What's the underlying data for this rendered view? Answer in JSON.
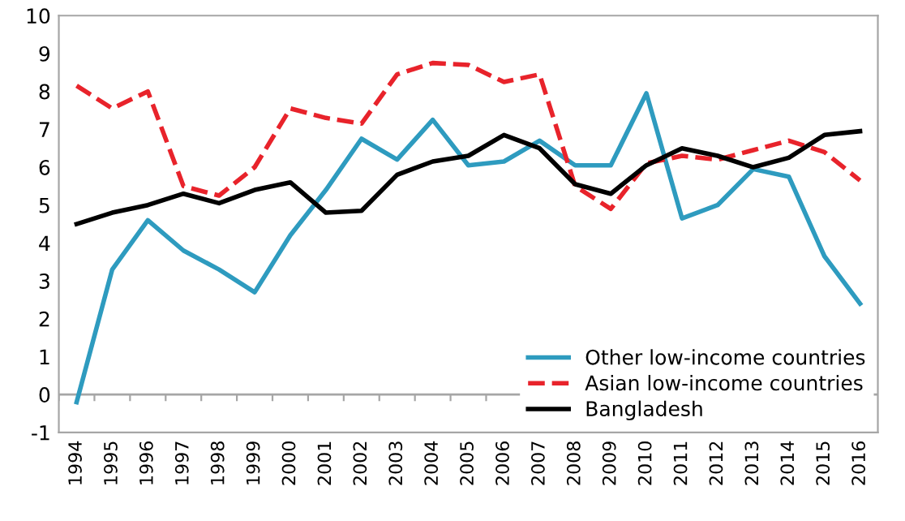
{
  "chart_data": {
    "type": "line",
    "categories": [
      "1994",
      "1995",
      "1996",
      "1997",
      "1998",
      "1999",
      "2000",
      "2001",
      "2002",
      "2003",
      "2004",
      "2005",
      "2006",
      "2007",
      "2008",
      "2009",
      "2010",
      "2011",
      "2012",
      "2013",
      "2014",
      "2015",
      "2016"
    ],
    "series": [
      {
        "name": "Other low-income countries",
        "color": "#2e9bbf",
        "line_style": "solid",
        "values": [
          -0.2,
          3.3,
          4.6,
          3.8,
          3.3,
          2.7,
          4.2,
          5.4,
          6.75,
          6.2,
          7.25,
          6.05,
          6.15,
          6.7,
          6.05,
          6.05,
          7.95,
          4.65,
          5.0,
          5.95,
          5.75,
          3.65,
          2.4
        ]
      },
      {
        "name": "Asian low-income countries",
        "color": "#e8232b",
        "line_style": "dashed",
        "values": [
          8.15,
          7.55,
          8.0,
          5.5,
          5.25,
          6.0,
          7.55,
          7.3,
          7.15,
          8.45,
          8.75,
          8.7,
          8.25,
          8.45,
          5.5,
          4.9,
          6.1,
          6.3,
          6.2,
          6.45,
          6.7,
          6.4,
          5.65
        ]
      },
      {
        "name": "Bangladesh",
        "color": "#000000",
        "line_style": "solid",
        "values": [
          4.5,
          4.8,
          5.0,
          5.3,
          5.05,
          5.4,
          5.6,
          4.8,
          4.85,
          5.8,
          6.15,
          6.3,
          6.85,
          6.5,
          5.55,
          5.3,
          6.05,
          6.5,
          6.3,
          6.0,
          6.25,
          6.85,
          6.95
        ]
      }
    ],
    "ylim": [
      -1,
      10
    ],
    "yticks": [
      -1,
      0,
      1,
      2,
      3,
      4,
      5,
      6,
      7,
      8,
      9,
      10
    ],
    "ref_lines": [
      {
        "axis": "y",
        "value": 0,
        "color": "#a6a6a6"
      }
    ],
    "legend": "bottom right",
    "grid": false,
    "marker": "none"
  }
}
